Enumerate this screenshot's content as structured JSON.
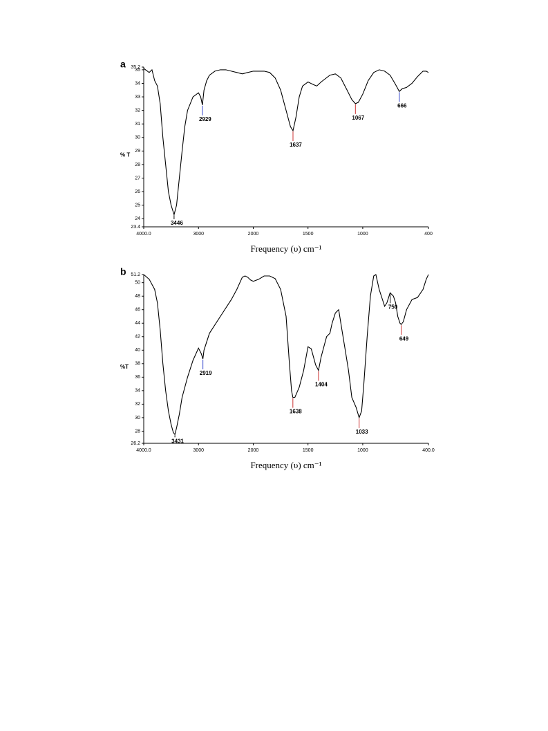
{
  "chart_data": [
    {
      "type": "line",
      "panel": "a",
      "ylabel": "% T",
      "xlabel": "Frequency (υ) cm⁻¹",
      "color": "#000000",
      "x": [
        4000,
        3900,
        3850,
        3800,
        3750,
        3700,
        3650,
        3600,
        3550,
        3500,
        3446,
        3400,
        3350,
        3300,
        3250,
        3200,
        3100,
        3000,
        2960,
        2929,
        2900,
        2850,
        2800,
        2700,
        2600,
        2500,
        2400,
        2300,
        2200,
        2100,
        2000,
        1900,
        1850,
        1800,
        1750,
        1700,
        1660,
        1637,
        1610,
        1580,
        1550,
        1500,
        1450,
        1420,
        1380,
        1300,
        1250,
        1200,
        1150,
        1100,
        1067,
        1040,
        1000,
        950,
        900,
        850,
        800,
        750,
        700,
        666,
        640,
        600,
        550,
        500,
        450,
        420,
        400
      ],
      "values": [
        35.1,
        34.8,
        35,
        34.2,
        33.8,
        32.5,
        30,
        28,
        26,
        25,
        24.3,
        25,
        27,
        29,
        30.8,
        32,
        33,
        33.3,
        33,
        32.4,
        33.5,
        34.2,
        34.6,
        34.9,
        35,
        35,
        34.9,
        34.8,
        34.7,
        34.8,
        34.9,
        34.9,
        34.8,
        34.4,
        33.5,
        32,
        30.8,
        30.5,
        31.5,
        33,
        33.8,
        34.1,
        33.9,
        33.8,
        34.1,
        34.6,
        34.7,
        34.4,
        33.6,
        32.8,
        32.5,
        32.6,
        33.2,
        34.2,
        34.8,
        35,
        34.9,
        34.6,
        33.9,
        33.4,
        33.6,
        33.7,
        34,
        34.5,
        34.9,
        34.9,
        34.8
      ],
      "xlim": [
        4000,
        400
      ],
      "x_scale_break": 2000,
      "xticks": [
        {
          "value": 4000,
          "label": "4000.0"
        },
        3000,
        2000,
        1500,
        1000,
        400
      ],
      "ylim": [
        23.4,
        35.2
      ],
      "yticks": [
        23.4,
        24,
        25,
        26,
        27,
        28,
        29,
        30,
        31,
        32,
        33,
        34,
        35,
        35.2
      ],
      "annotations": [
        {
          "x": 3446,
          "y": 24.3,
          "color": "#000000"
        },
        {
          "x": 2929,
          "y": 32.4,
          "color": "#3344cc"
        },
        {
          "x": 1637,
          "y": 30.5,
          "color": "#cc3333"
        },
        {
          "x": 1067,
          "y": 32.5,
          "color": "#cc3333"
        },
        {
          "x": 666,
          "y": 33.4,
          "color": "#3344cc"
        }
      ]
    },
    {
      "type": "line",
      "panel": "b",
      "ylabel": "%T",
      "xlabel": "Frequency (υ) cm⁻¹",
      "color": "#000000",
      "x": [
        4000,
        3900,
        3800,
        3750,
        3700,
        3650,
        3600,
        3550,
        3500,
        3460,
        3431,
        3400,
        3350,
        3300,
        3200,
        3100,
        3000,
        2950,
        2919,
        2900,
        2800,
        2600,
        2400,
        2300,
        2200,
        2150,
        2100,
        2050,
        2000,
        1950,
        1900,
        1850,
        1800,
        1750,
        1700,
        1670,
        1650,
        1638,
        1620,
        1580,
        1540,
        1500,
        1470,
        1430,
        1404,
        1380,
        1330,
        1300,
        1280,
        1250,
        1220,
        1190,
        1160,
        1130,
        1100,
        1060,
        1033,
        1010,
        990,
        960,
        930,
        900,
        880,
        850,
        800,
        780,
        750,
        720,
        700,
        680,
        660,
        649,
        630,
        600,
        550,
        500,
        450,
        420,
        400
      ],
      "values": [
        51.2,
        50.5,
        49,
        47,
        43,
        38,
        34,
        31,
        29,
        27.8,
        27.5,
        28.5,
        30.5,
        33,
        36,
        38.5,
        40.3,
        39.5,
        38.7,
        40,
        42.5,
        45,
        47.5,
        49,
        50.8,
        51,
        50.8,
        50.4,
        50.2,
        50.5,
        51,
        51,
        50.6,
        49,
        45,
        38,
        34,
        33,
        33,
        34.5,
        37,
        40.5,
        40.2,
        37.8,
        37,
        39,
        42,
        42.5,
        44,
        45.5,
        46,
        43,
        40,
        37,
        33,
        31.5,
        30,
        31,
        35,
        42,
        48,
        51,
        51.2,
        49,
        46.5,
        47,
        48.5,
        48,
        47,
        45,
        44,
        43.8,
        44.2,
        46,
        47.5,
        47.8,
        49,
        50.5,
        51.2
      ],
      "xlim": [
        4000,
        400
      ],
      "x_scale_break": 2000,
      "xticks": [
        {
          "value": 4000,
          "label": "4000.0"
        },
        3000,
        2000,
        1500,
        1000,
        {
          "value": 400,
          "label": "400.0"
        }
      ],
      "ylim": [
        26.2,
        51.2
      ],
      "yticks": [
        26.2,
        28,
        30,
        32,
        34,
        36,
        38,
        40,
        42,
        44,
        46,
        48,
        50,
        51.2
      ],
      "annotations": [
        {
          "x": 3431,
          "y": 27.5,
          "color": "#000000"
        },
        {
          "x": 2919,
          "y": 38.7,
          "color": "#3344cc"
        },
        {
          "x": 1638,
          "y": 33,
          "color": "#cc3333"
        },
        {
          "x": 1404,
          "y": 37,
          "color": "#cc3333"
        },
        {
          "x": 1033,
          "y": 30,
          "color": "#cc3333"
        },
        {
          "x": 750,
          "y": 48.5,
          "color": "#000000"
        },
        {
          "x": 649,
          "y": 43.8,
          "color": "#cc3333"
        }
      ]
    }
  ]
}
